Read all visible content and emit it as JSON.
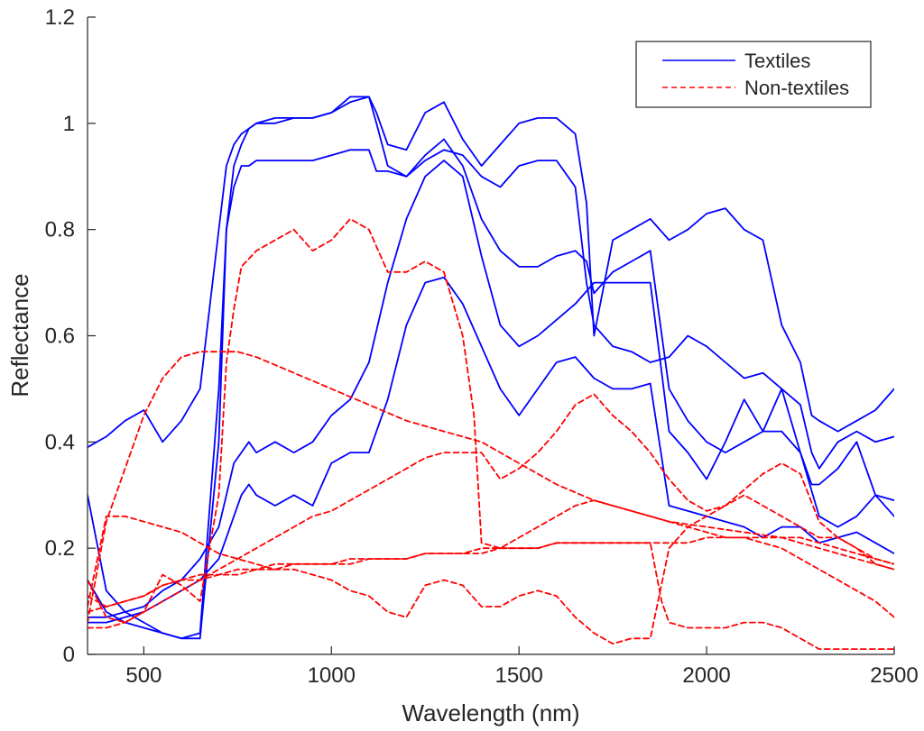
{
  "chart_data": {
    "type": "line",
    "title": "",
    "xlabel": "Wavelength (nm)",
    "ylabel": "Reflectance",
    "xlim": [
      350,
      2500
    ],
    "ylim": [
      0,
      1.2
    ],
    "xticks": [
      500,
      1000,
      1500,
      2000,
      2500
    ],
    "yticks": [
      0,
      0.2,
      0.4,
      0.6,
      0.8,
      1,
      1.2
    ],
    "ytick_labels": [
      "0",
      "0.2",
      "0.4",
      "0.6",
      "0.8",
      "1",
      "1.2"
    ],
    "grid": false,
    "legend_position": "top-right",
    "groups": {
      "Textiles": {
        "color": "#0000ff",
        "style": "solid"
      },
      "Non-textiles": {
        "color": "#ff0000",
        "style": "dashed"
      }
    },
    "series": [
      {
        "group": "Textiles",
        "x": [
          350,
          400,
          450,
          500,
          550,
          600,
          650,
          700,
          720,
          740,
          760,
          780,
          800,
          850,
          900,
          950,
          1000,
          1050,
          1100,
          1120,
          1150,
          1200,
          1250,
          1300,
          1350,
          1400,
          1450,
          1500,
          1550,
          1600,
          1650,
          1680,
          1700,
          1750,
          1800,
          1850,
          1900,
          1950,
          2000,
          2050,
          2100,
          2150,
          2200,
          2250,
          2280,
          2300,
          2350,
          2400,
          2450,
          2500
        ],
        "y": [
          0.39,
          0.41,
          0.44,
          0.46,
          0.4,
          0.44,
          0.5,
          0.8,
          0.92,
          0.96,
          0.98,
          0.99,
          1.0,
          1.01,
          1.01,
          1.01,
          1.02,
          1.05,
          1.05,
          1.0,
          0.92,
          0.9,
          0.93,
          0.95,
          0.94,
          0.9,
          0.88,
          0.92,
          0.93,
          0.93,
          0.88,
          0.7,
          0.62,
          0.58,
          0.57,
          0.55,
          0.56,
          0.6,
          0.58,
          0.55,
          0.52,
          0.53,
          0.5,
          0.47,
          0.38,
          0.35,
          0.4,
          0.42,
          0.4,
          0.41
        ]
      },
      {
        "group": "Textiles",
        "x": [
          350,
          400,
          450,
          500,
          550,
          600,
          650,
          700,
          720,
          740,
          760,
          780,
          800,
          850,
          900,
          950,
          1000,
          1050,
          1100,
          1120,
          1150,
          1200,
          1250,
          1300,
          1350,
          1400,
          1450,
          1500,
          1550,
          1600,
          1650,
          1680,
          1700,
          1750,
          1800,
          1850,
          1900,
          1950,
          2000,
          2050,
          2100,
          2150,
          2200,
          2250,
          2280,
          2300,
          2350,
          2400,
          2450,
          2500
        ],
        "y": [
          0.3,
          0.12,
          0.08,
          0.06,
          0.04,
          0.03,
          0.03,
          0.4,
          0.8,
          0.92,
          0.96,
          0.99,
          1.0,
          1.0,
          1.01,
          1.01,
          1.02,
          1.04,
          1.05,
          1.02,
          0.96,
          0.95,
          1.02,
          1.04,
          0.97,
          0.92,
          0.96,
          1.0,
          1.01,
          1.01,
          0.98,
          0.85,
          0.6,
          0.78,
          0.8,
          0.82,
          0.78,
          0.8,
          0.83,
          0.84,
          0.8,
          0.78,
          0.62,
          0.55,
          0.45,
          0.44,
          0.42,
          0.44,
          0.46,
          0.5
        ]
      },
      {
        "group": "Textiles",
        "x": [
          350,
          400,
          450,
          500,
          550,
          600,
          650,
          700,
          720,
          740,
          760,
          780,
          800,
          850,
          900,
          950,
          1000,
          1050,
          1100,
          1120,
          1150,
          1200,
          1250,
          1300,
          1350,
          1400,
          1450,
          1500,
          1550,
          1600,
          1650,
          1680,
          1700,
          1750,
          1800,
          1850,
          1900,
          1950,
          2000,
          2050,
          2100,
          2150,
          2200,
          2250,
          2280,
          2300,
          2350,
          2400,
          2450,
          2500
        ],
        "y": [
          0.14,
          0.08,
          0.06,
          0.05,
          0.04,
          0.03,
          0.04,
          0.5,
          0.8,
          0.88,
          0.92,
          0.92,
          0.93,
          0.93,
          0.93,
          0.93,
          0.94,
          0.95,
          0.95,
          0.91,
          0.91,
          0.9,
          0.94,
          0.97,
          0.92,
          0.82,
          0.76,
          0.73,
          0.73,
          0.75,
          0.76,
          0.74,
          0.68,
          0.72,
          0.74,
          0.76,
          0.5,
          0.44,
          0.4,
          0.38,
          0.4,
          0.42,
          0.42,
          0.38,
          0.32,
          0.32,
          0.35,
          0.4,
          0.3,
          0.29
        ]
      },
      {
        "group": "Textiles",
        "x": [
          350,
          400,
          450,
          500,
          550,
          600,
          650,
          700,
          720,
          740,
          760,
          780,
          800,
          850,
          900,
          950,
          1000,
          1050,
          1100,
          1150,
          1200,
          1250,
          1300,
          1350,
          1400,
          1450,
          1500,
          1550,
          1600,
          1650,
          1700,
          1750,
          1800,
          1850,
          1900,
          1950,
          2000,
          2050,
          2100,
          2150,
          2200,
          2250,
          2300,
          2350,
          2400,
          2450,
          2500
        ],
        "y": [
          0.07,
          0.07,
          0.08,
          0.09,
          0.12,
          0.14,
          0.18,
          0.24,
          0.3,
          0.36,
          0.38,
          0.4,
          0.38,
          0.4,
          0.38,
          0.4,
          0.45,
          0.48,
          0.55,
          0.7,
          0.82,
          0.9,
          0.93,
          0.9,
          0.75,
          0.62,
          0.58,
          0.6,
          0.63,
          0.66,
          0.7,
          0.7,
          0.7,
          0.7,
          0.42,
          0.38,
          0.33,
          0.4,
          0.48,
          0.42,
          0.5,
          0.38,
          0.26,
          0.24,
          0.26,
          0.3,
          0.26
        ]
      },
      {
        "group": "Textiles",
        "x": [
          350,
          400,
          450,
          500,
          550,
          600,
          650,
          700,
          720,
          740,
          760,
          780,
          800,
          850,
          900,
          950,
          1000,
          1050,
          1100,
          1150,
          1200,
          1250,
          1300,
          1350,
          1400,
          1450,
          1500,
          1550,
          1600,
          1650,
          1700,
          1750,
          1800,
          1850,
          1900,
          1950,
          2000,
          2050,
          2100,
          2150,
          2200,
          2250,
          2300,
          2350,
          2400,
          2450,
          2500
        ],
        "y": [
          0.06,
          0.06,
          0.07,
          0.08,
          0.1,
          0.12,
          0.14,
          0.18,
          0.22,
          0.26,
          0.3,
          0.32,
          0.3,
          0.28,
          0.3,
          0.28,
          0.36,
          0.38,
          0.38,
          0.48,
          0.62,
          0.7,
          0.71,
          0.66,
          0.58,
          0.5,
          0.45,
          0.5,
          0.55,
          0.56,
          0.52,
          0.5,
          0.5,
          0.51,
          0.28,
          0.27,
          0.26,
          0.25,
          0.24,
          0.22,
          0.24,
          0.24,
          0.21,
          0.22,
          0.23,
          0.21,
          0.19
        ]
      },
      {
        "group": "Non-textiles",
        "x": [
          350,
          400,
          450,
          500,
          550,
          600,
          650,
          700,
          720,
          740,
          760,
          800,
          850,
          900,
          950,
          1000,
          1050,
          1100,
          1150,
          1200,
          1250,
          1300,
          1350,
          1380,
          1400,
          1450,
          1500,
          1550,
          1600,
          1650,
          1700,
          1750,
          1800,
          1850,
          1900,
          1950,
          2000,
          2050,
          2100,
          2150,
          2200,
          2250,
          2300,
          2350,
          2400,
          2450,
          2500
        ],
        "y": [
          0.05,
          0.05,
          0.06,
          0.08,
          0.15,
          0.13,
          0.1,
          0.3,
          0.55,
          0.65,
          0.73,
          0.76,
          0.78,
          0.8,
          0.76,
          0.78,
          0.82,
          0.8,
          0.72,
          0.72,
          0.74,
          0.72,
          0.6,
          0.45,
          0.21,
          0.2,
          0.22,
          0.24,
          0.26,
          0.28,
          0.29,
          0.28,
          0.27,
          0.26,
          0.25,
          0.24,
          0.23,
          0.22,
          0.22,
          0.21,
          0.2,
          0.18,
          0.16,
          0.14,
          0.12,
          0.1,
          0.07
        ]
      },
      {
        "group": "Non-textiles",
        "x": [
          350,
          400,
          450,
          500,
          550,
          600,
          650,
          700,
          750,
          800,
          900,
          1000,
          1100,
          1200,
          1300,
          1400,
          1500,
          1600,
          1700,
          1800,
          1900,
          2000,
          2100,
          2200,
          2300,
          2400,
          2500
        ],
        "y": [
          0.06,
          0.25,
          0.35,
          0.45,
          0.52,
          0.56,
          0.57,
          0.57,
          0.57,
          0.56,
          0.53,
          0.5,
          0.47,
          0.44,
          0.42,
          0.4,
          0.36,
          0.32,
          0.29,
          0.27,
          0.25,
          0.24,
          0.23,
          0.22,
          0.2,
          0.18,
          0.16
        ]
      },
      {
        "group": "Non-textiles",
        "x": [
          350,
          400,
          450,
          500,
          550,
          600,
          650,
          700,
          750,
          800,
          850,
          900,
          950,
          1000,
          1050,
          1100,
          1150,
          1200,
          1250,
          1300,
          1350,
          1400,
          1450,
          1500,
          1550,
          1600,
          1650,
          1700,
          1750,
          1800,
          1850,
          1900,
          1950,
          2000,
          2050,
          2100,
          2150,
          2200,
          2250,
          2300,
          2350,
          2400,
          2450,
          2500
        ],
        "y": [
          0.14,
          0.07,
          0.06,
          0.08,
          0.1,
          0.12,
          0.14,
          0.16,
          0.18,
          0.2,
          0.22,
          0.24,
          0.26,
          0.27,
          0.29,
          0.31,
          0.33,
          0.35,
          0.37,
          0.38,
          0.38,
          0.38,
          0.33,
          0.35,
          0.38,
          0.42,
          0.47,
          0.49,
          0.45,
          0.42,
          0.38,
          0.33,
          0.29,
          0.27,
          0.28,
          0.3,
          0.28,
          0.26,
          0.24,
          0.22,
          0.22,
          0.2,
          0.18,
          0.17
        ]
      },
      {
        "group": "Non-textiles",
        "x": [
          350,
          400,
          450,
          500,
          550,
          600,
          650,
          700,
          750,
          800,
          850,
          900,
          950,
          1000,
          1050,
          1100,
          1150,
          1200,
          1250,
          1300,
          1350,
          1400,
          1450,
          1500,
          1550,
          1600,
          1650,
          1700,
          1750,
          1800,
          1850,
          1880,
          1900,
          1950,
          2000,
          2050,
          2100,
          2150,
          2200,
          2250,
          2300,
          2350,
          2400,
          2450,
          2500
        ],
        "y": [
          0.11,
          0.09,
          0.1,
          0.11,
          0.13,
          0.14,
          0.14,
          0.15,
          0.15,
          0.16,
          0.16,
          0.17,
          0.17,
          0.17,
          0.17,
          0.18,
          0.18,
          0.18,
          0.19,
          0.19,
          0.19,
          0.19,
          0.2,
          0.2,
          0.2,
          0.21,
          0.21,
          0.21,
          0.21,
          0.21,
          0.21,
          0.1,
          0.06,
          0.05,
          0.05,
          0.05,
          0.06,
          0.06,
          0.05,
          0.03,
          0.01,
          0.01,
          0.01,
          0.01,
          0.01
        ]
      },
      {
        "group": "Non-textiles",
        "x": [
          350,
          400,
          450,
          500,
          550,
          600,
          650,
          700,
          750,
          800,
          850,
          900,
          950,
          1000,
          1050,
          1100,
          1150,
          1200,
          1250,
          1300,
          1350,
          1400,
          1450,
          1500,
          1550,
          1600,
          1650,
          1700,
          1750,
          1800,
          1850,
          1900,
          1950,
          2000,
          2050,
          2100,
          2150,
          2200,
          2250,
          2300,
          2350,
          2400,
          2450,
          2500
        ],
        "y": [
          0.09,
          0.26,
          0.26,
          0.25,
          0.24,
          0.23,
          0.21,
          0.19,
          0.18,
          0.17,
          0.16,
          0.16,
          0.15,
          0.14,
          0.12,
          0.11,
          0.08,
          0.07,
          0.13,
          0.14,
          0.13,
          0.09,
          0.09,
          0.11,
          0.12,
          0.11,
          0.07,
          0.04,
          0.02,
          0.03,
          0.03,
          0.2,
          0.24,
          0.26,
          0.28,
          0.31,
          0.34,
          0.36,
          0.34,
          0.25,
          0.22,
          0.2,
          0.17,
          0.16
        ]
      },
      {
        "group": "Non-textiles",
        "x": [
          350,
          400,
          450,
          500,
          550,
          600,
          650,
          700,
          750,
          800,
          850,
          900,
          950,
          1000,
          1050,
          1100,
          1150,
          1200,
          1250,
          1300,
          1350,
          1400,
          1450,
          1500,
          1550,
          1600,
          1650,
          1700,
          1750,
          1800,
          1850,
          1900,
          1950,
          2000,
          2050,
          2100,
          2150,
          2200,
          2250,
          2300,
          2350,
          2400,
          2450,
          2500
        ],
        "y": [
          0.08,
          0.09,
          0.1,
          0.11,
          0.13,
          0.14,
          0.15,
          0.15,
          0.16,
          0.16,
          0.17,
          0.17,
          0.17,
          0.17,
          0.18,
          0.18,
          0.18,
          0.18,
          0.19,
          0.19,
          0.19,
          0.2,
          0.2,
          0.2,
          0.2,
          0.21,
          0.21,
          0.21,
          0.21,
          0.21,
          0.21,
          0.21,
          0.21,
          0.22,
          0.22,
          0.22,
          0.22,
          0.22,
          0.22,
          0.21,
          0.2,
          0.19,
          0.18,
          0.17
        ]
      }
    ]
  }
}
